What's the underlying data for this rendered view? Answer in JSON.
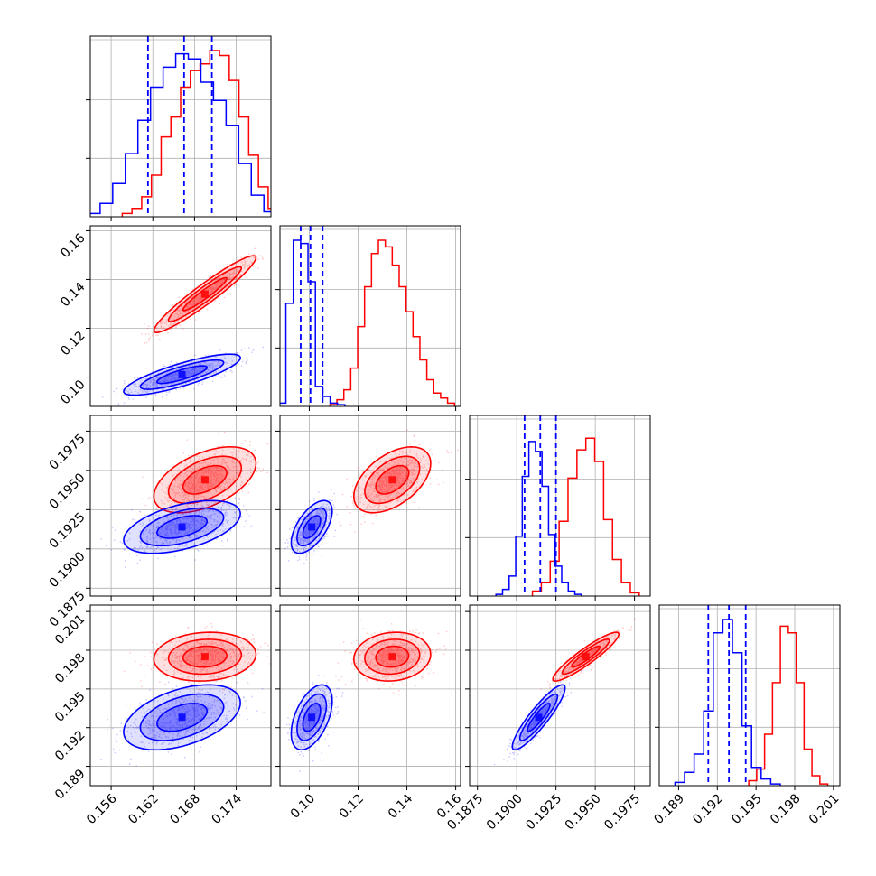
{
  "chart_data": {
    "type": "corner",
    "grid": true,
    "params": [
      {
        "range": [
          0.153,
          0.179
        ],
        "ticks": [
          0.156,
          0.162,
          0.168,
          0.174
        ],
        "tick_labels": [
          "0.156",
          "0.162",
          "0.168",
          "0.174"
        ],
        "quantiles_blue": [
          0.1613,
          0.1665,
          0.1705
        ]
      },
      {
        "range": [
          0.088,
          0.162
        ],
        "ticks": [
          0.1,
          0.12,
          0.14,
          0.16
        ],
        "tick_labels": [
          "0.10",
          "0.12",
          "0.14",
          "0.16"
        ],
        "quantiles_blue": [
          0.0965,
          0.1005,
          0.1055
        ]
      },
      {
        "range": [
          0.187,
          0.1985
        ],
        "ticks": [
          0.1875,
          0.19,
          0.1925,
          0.195,
          0.1975
        ],
        "tick_labels": [
          "0.1875",
          "0.1900",
          "0.1925",
          "0.1950",
          "0.1975"
        ],
        "quantiles_blue": [
          0.1905,
          0.1915,
          0.1925
        ]
      },
      {
        "range": [
          0.1875,
          0.2015
        ],
        "ticks": [
          0.189,
          0.192,
          0.195,
          0.198,
          0.201
        ],
        "tick_labels": [
          "0.189",
          "0.192",
          "0.195",
          "0.198",
          "0.201"
        ],
        "quantiles_blue": [
          0.1913,
          0.1929,
          0.1942
        ]
      }
    ],
    "series": [
      {
        "color": "#ff0000",
        "means": [
          0.1695,
          0.134,
          0.1944,
          0.1975
        ],
        "sds": [
          0.0035,
          0.0075,
          0.001,
          0.0009
        ],
        "correlations": [
          [
            0,
            1,
            0.95
          ],
          [
            0,
            2,
            0.5
          ],
          [
            0,
            3,
            0.1
          ],
          [
            1,
            2,
            0.5
          ],
          [
            1,
            3,
            0.1
          ],
          [
            2,
            3,
            0.92
          ]
        ],
        "hist_bin_heights": [
          [
            0.02,
            0.05,
            0.12,
            0.25,
            0.48,
            0.6,
            0.78,
            0.88,
            0.92,
            1.0,
            0.97,
            0.82,
            0.6,
            0.37,
            0.18,
            0.05,
            0.02
          ],
          [
            0.01,
            0.04,
            0.1,
            0.23,
            0.48,
            0.72,
            0.92,
            1.0,
            0.96,
            0.85,
            0.72,
            0.57,
            0.42,
            0.28,
            0.16,
            0.08,
            0.05,
            0.02
          ],
          [
            0.03,
            0.08,
            0.21,
            0.45,
            0.71,
            0.88,
            0.95,
            0.81,
            0.46,
            0.22,
            0.08,
            0.02
          ],
          [
            0.03,
            0.1,
            0.31,
            0.62,
            0.96,
            0.92,
            0.62,
            0.22,
            0.06,
            0.01
          ]
        ]
      },
      {
        "color": "#0000ff",
        "means": [
          0.1662,
          0.101,
          0.1914,
          0.1928
        ],
        "sds": [
          0.004,
          0.004,
          0.0008,
          0.0012
        ],
        "correlations": [
          [
            0,
            1,
            0.82
          ],
          [
            0,
            2,
            0.5
          ],
          [
            0,
            3,
            0.45
          ],
          [
            1,
            2,
            0.6
          ],
          [
            1,
            3,
            0.5
          ],
          [
            2,
            3,
            0.9
          ]
        ],
        "hist_bin_heights": [
          [
            0.02,
            0.08,
            0.2,
            0.38,
            0.58,
            0.78,
            0.9,
            0.98,
            0.95,
            0.81,
            0.7,
            0.55,
            0.32,
            0.13,
            0.03
          ],
          [
            0.02,
            0.62,
            1.0,
            0.98,
            0.75,
            0.12,
            0.06,
            0.02,
            0.01
          ],
          [
            0.01,
            0.04,
            0.12,
            0.36,
            0.72,
            0.93,
            0.87,
            0.66,
            0.37,
            0.18,
            0.08,
            0.03,
            0.01
          ],
          [
            0.02,
            0.08,
            0.19,
            0.45,
            0.92,
            1.0,
            0.8,
            0.36,
            0.11,
            0.04,
            0.01
          ]
        ]
      }
    ]
  }
}
